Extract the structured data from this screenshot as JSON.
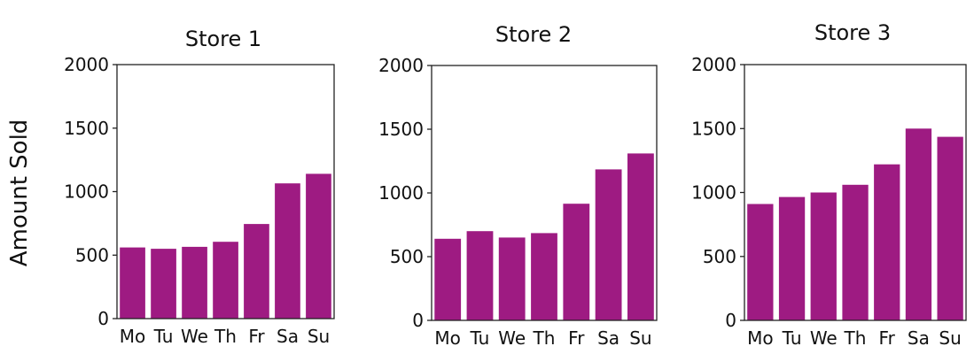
{
  "figure": {
    "ylabel": "Amount Sold",
    "bar_color": "#9E1B82"
  },
  "chart_data": [
    {
      "type": "bar",
      "title": "Store 1",
      "categories": [
        "Mo",
        "Tu",
        "We",
        "Th",
        "Fr",
        "Sa",
        "Su"
      ],
      "values": [
        560,
        550,
        565,
        605,
        745,
        1065,
        1140
      ],
      "yticks": [
        "0",
        "500",
        "1000",
        "1500",
        "2000"
      ],
      "ylim": [
        0,
        2000
      ],
      "grid": false,
      "legend": "none"
    },
    {
      "type": "bar",
      "title": "Store 2",
      "categories": [
        "Mo",
        "Tu",
        "We",
        "Th",
        "Fr",
        "Sa",
        "Su"
      ],
      "values": [
        640,
        700,
        650,
        685,
        915,
        1185,
        1310
      ],
      "yticks": [
        "0",
        "500",
        "1000",
        "1500",
        "2000"
      ],
      "ylim": [
        0,
        2000
      ],
      "grid": false,
      "legend": "none"
    },
    {
      "type": "bar",
      "title": "Store 3",
      "categories": [
        "Mo",
        "Tu",
        "We",
        "Th",
        "Fr",
        "Sa",
        "Su"
      ],
      "values": [
        910,
        965,
        1000,
        1060,
        1220,
        1500,
        1435
      ],
      "yticks": [
        "0",
        "500",
        "1000",
        "1500",
        "2000"
      ],
      "ylim": [
        0,
        2000
      ],
      "grid": false,
      "legend": "none"
    }
  ]
}
